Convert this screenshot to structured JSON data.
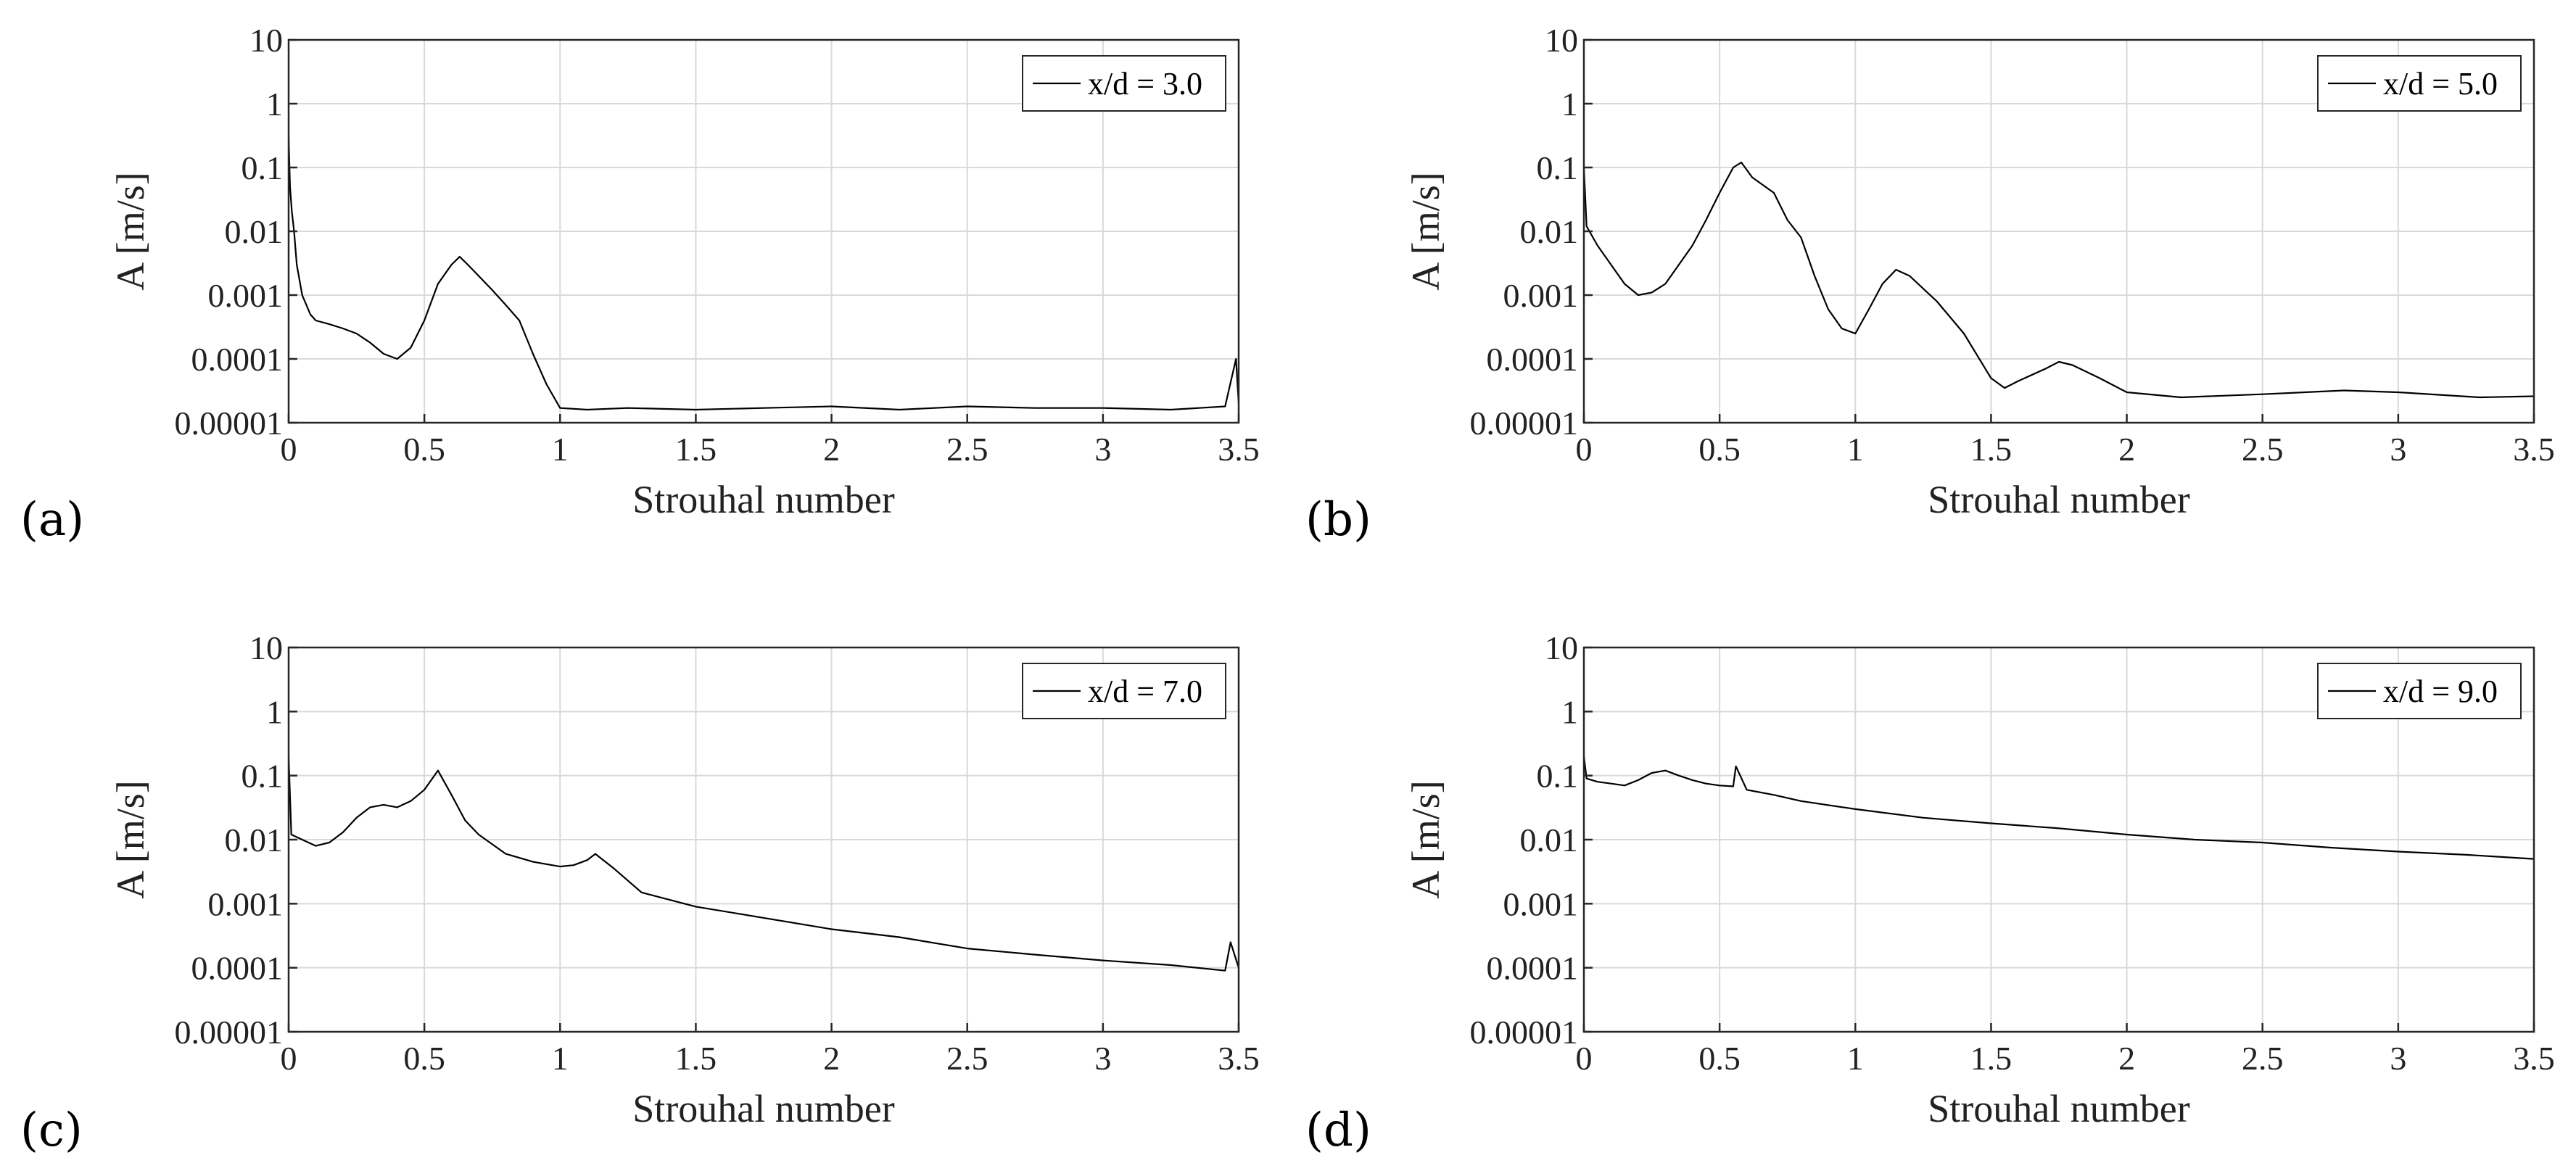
{
  "chart_data": [
    {
      "type": "line",
      "panel_label": "(a)",
      "legend": "x/d = 3.0",
      "xlabel": "Strouhal number",
      "ylabel": "A [m/s]",
      "xlim": [
        0,
        3.5
      ],
      "ylim": [
        1e-05,
        10
      ],
      "yscale": "log",
      "xticks": [
        0,
        0.5,
        1,
        1.5,
        2,
        2.5,
        3,
        3.5
      ],
      "xtick_labels": [
        "0",
        "0.5",
        "1",
        "1.5",
        "2",
        "2.5",
        "3",
        "3.5"
      ],
      "yticks": [
        1e-05,
        0.0001,
        0.001,
        0.01,
        0.1,
        1,
        10
      ],
      "ytick_labels": [
        "0.00001",
        "0.0001",
        "0.001",
        "0.01",
        "0.1",
        "1",
        "10"
      ],
      "grid": true,
      "legend_position": "top-right",
      "series": [
        {
          "name": "x/d = 3.0",
          "x": [
            0,
            0.005,
            0.012,
            0.02,
            0.03,
            0.05,
            0.08,
            0.1,
            0.15,
            0.2,
            0.25,
            0.3,
            0.35,
            0.4,
            0.45,
            0.5,
            0.55,
            0.6,
            0.63,
            0.66,
            0.7,
            0.75,
            0.8,
            0.85,
            0.9,
            0.95,
            1.0,
            1.1,
            1.25,
            1.5,
            1.75,
            2.0,
            2.25,
            2.5,
            2.75,
            3.0,
            3.25,
            3.45,
            3.49,
            3.5
          ],
          "y": [
            0.3,
            0.05,
            0.02,
            0.01,
            0.003,
            0.001,
            0.0005,
            0.0004,
            0.00035,
            0.0003,
            0.00025,
            0.00018,
            0.00012,
            0.0001,
            0.00015,
            0.0004,
            0.0015,
            0.003,
            0.004,
            0.003,
            0.002,
            0.0012,
            0.0007,
            0.0004,
            0.00012,
            4e-05,
            1.7e-05,
            1.6e-05,
            1.7e-05,
            1.6e-05,
            1.7e-05,
            1.8e-05,
            1.6e-05,
            1.8e-05,
            1.7e-05,
            1.7e-05,
            1.6e-05,
            1.8e-05,
            0.0001,
            2e-05
          ]
        }
      ]
    },
    {
      "type": "line",
      "panel_label": "(b)",
      "legend": "x/d = 5.0",
      "xlabel": "Strouhal number",
      "ylabel": "A [m/s]",
      "xlim": [
        0,
        3.5
      ],
      "ylim": [
        1e-05,
        10
      ],
      "yscale": "log",
      "xticks": [
        0,
        0.5,
        1,
        1.5,
        2,
        2.5,
        3,
        3.5
      ],
      "xtick_labels": [
        "0",
        "0.5",
        "1",
        "1.5",
        "2",
        "2.5",
        "3",
        "3.5"
      ],
      "yticks": [
        1e-05,
        0.0001,
        0.001,
        0.01,
        0.1,
        1,
        10
      ],
      "ytick_labels": [
        "0.00001",
        "0.0001",
        "0.001",
        "0.01",
        "0.1",
        "1",
        "10"
      ],
      "grid": true,
      "legend_position": "top-right",
      "series": [
        {
          "name": "x/d = 5.0",
          "x": [
            0,
            0.01,
            0.05,
            0.1,
            0.15,
            0.2,
            0.25,
            0.3,
            0.35,
            0.4,
            0.45,
            0.5,
            0.55,
            0.58,
            0.62,
            0.7,
            0.75,
            0.8,
            0.85,
            0.9,
            0.95,
            1.0,
            1.05,
            1.1,
            1.15,
            1.2,
            1.3,
            1.4,
            1.5,
            1.55,
            1.6,
            1.7,
            1.75,
            1.8,
            1.9,
            2.0,
            2.2,
            2.5,
            2.8,
            3.0,
            3.3,
            3.5
          ],
          "y": [
            0.1,
            0.012,
            0.006,
            0.003,
            0.0015,
            0.001,
            0.0011,
            0.0015,
            0.003,
            0.006,
            0.015,
            0.04,
            0.1,
            0.12,
            0.07,
            0.04,
            0.015,
            0.008,
            0.002,
            0.0006,
            0.0003,
            0.00025,
            0.0006,
            0.0015,
            0.0025,
            0.002,
            0.0008,
            0.00025,
            5e-05,
            3.5e-05,
            4.5e-05,
            7e-05,
            9e-05,
            8e-05,
            5e-05,
            3e-05,
            2.5e-05,
            2.8e-05,
            3.2e-05,
            3e-05,
            2.5e-05,
            2.6e-05
          ]
        }
      ]
    },
    {
      "type": "line",
      "panel_label": "(c)",
      "legend": "x/d = 7.0",
      "xlabel": "Strouhal number",
      "ylabel": "A [m/s]",
      "xlim": [
        0,
        3.5
      ],
      "ylim": [
        1e-05,
        10
      ],
      "yscale": "log",
      "xticks": [
        0,
        0.5,
        1,
        1.5,
        2,
        2.5,
        3,
        3.5
      ],
      "xtick_labels": [
        "0",
        "0.5",
        "1",
        "1.5",
        "2",
        "2.5",
        "3",
        "3.5"
      ],
      "yticks": [
        1e-05,
        0.0001,
        0.001,
        0.01,
        0.1,
        1,
        10
      ],
      "ytick_labels": [
        "0.00001",
        "0.0001",
        "0.001",
        "0.01",
        "0.1",
        "1",
        "10"
      ],
      "grid": true,
      "legend_position": "top-right",
      "series": [
        {
          "name": "x/d = 7.0",
          "x": [
            0,
            0.01,
            0.05,
            0.1,
            0.15,
            0.2,
            0.25,
            0.3,
            0.35,
            0.4,
            0.45,
            0.5,
            0.55,
            0.6,
            0.65,
            0.7,
            0.8,
            0.9,
            1.0,
            1.05,
            1.1,
            1.13,
            1.2,
            1.3,
            1.5,
            1.75,
            2.0,
            2.25,
            2.5,
            2.75,
            3.0,
            3.25,
            3.45,
            3.47,
            3.5
          ],
          "y": [
            0.2,
            0.012,
            0.01,
            0.008,
            0.009,
            0.013,
            0.022,
            0.032,
            0.035,
            0.032,
            0.04,
            0.06,
            0.12,
            0.05,
            0.02,
            0.012,
            0.006,
            0.0045,
            0.0038,
            0.004,
            0.0048,
            0.006,
            0.0035,
            0.0015,
            0.0009,
            0.0006,
            0.0004,
            0.0003,
            0.0002,
            0.00016,
            0.00013,
            0.00011,
            9e-05,
            0.00025,
            0.0001
          ]
        }
      ]
    },
    {
      "type": "line",
      "panel_label": "(d)",
      "legend": "x/d = 9.0",
      "xlabel": "Strouhal number",
      "ylabel": "A [m/s]",
      "xlim": [
        0,
        3.5
      ],
      "ylim": [
        1e-05,
        10
      ],
      "yscale": "log",
      "xticks": [
        0,
        0.5,
        1,
        1.5,
        2,
        2.5,
        3,
        3.5
      ],
      "xtick_labels": [
        "0",
        "0.5",
        "1",
        "1.5",
        "2",
        "2.5",
        "3",
        "3.5"
      ],
      "yticks": [
        1e-05,
        0.0001,
        0.001,
        0.01,
        0.1,
        1,
        10
      ],
      "ytick_labels": [
        "0.00001",
        "0.0001",
        "0.001",
        "0.01",
        "0.1",
        "1",
        "10"
      ],
      "grid": true,
      "legend_position": "top-right",
      "series": [
        {
          "name": "x/d = 9.0",
          "x": [
            0,
            0.01,
            0.05,
            0.1,
            0.15,
            0.2,
            0.25,
            0.3,
            0.35,
            0.4,
            0.45,
            0.5,
            0.55,
            0.56,
            0.6,
            0.7,
            0.8,
            1.0,
            1.25,
            1.5,
            1.75,
            2.0,
            2.25,
            2.5,
            2.75,
            3.0,
            3.25,
            3.5
          ],
          "y": [
            0.2,
            0.09,
            0.08,
            0.075,
            0.07,
            0.085,
            0.11,
            0.12,
            0.1,
            0.085,
            0.075,
            0.07,
            0.068,
            0.14,
            0.06,
            0.05,
            0.04,
            0.03,
            0.022,
            0.018,
            0.015,
            0.012,
            0.01,
            0.009,
            0.0075,
            0.0065,
            0.0058,
            0.005
          ]
        }
      ]
    }
  ]
}
